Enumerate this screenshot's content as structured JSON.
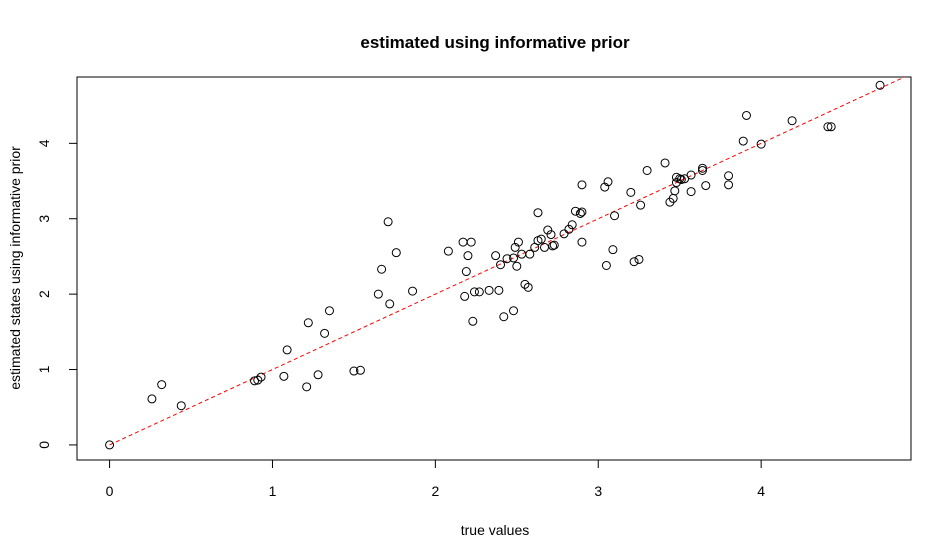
{
  "chart_data": {
    "type": "scatter",
    "title": "estimated using informative prior",
    "xlabel": "true values",
    "ylabel": "estimated states using informative prior",
    "xlim": [
      -0.2,
      4.92
    ],
    "ylim": [
      -0.2,
      4.88
    ],
    "xticks": [
      "0",
      "1",
      "2",
      "3",
      "4"
    ],
    "yticks": [
      "0",
      "1",
      "2",
      "3",
      "4"
    ],
    "grid": false,
    "reference_line": {
      "slope": 1,
      "intercept": 0,
      "color": "#ff0000",
      "style": "dashed"
    },
    "point_color": "#000000",
    "points": [
      [
        0.0,
        0.0
      ],
      [
        0.26,
        0.61
      ],
      [
        0.32,
        0.8
      ],
      [
        0.44,
        0.52
      ],
      [
        0.89,
        0.85
      ],
      [
        0.91,
        0.86
      ],
      [
        0.93,
        0.9
      ],
      [
        1.07,
        0.91
      ],
      [
        1.09,
        1.26
      ],
      [
        1.21,
        0.77
      ],
      [
        1.22,
        1.62
      ],
      [
        1.28,
        0.93
      ],
      [
        1.32,
        1.48
      ],
      [
        1.35,
        1.78
      ],
      [
        1.5,
        0.98
      ],
      [
        1.54,
        0.99
      ],
      [
        1.65,
        2.0
      ],
      [
        1.67,
        2.33
      ],
      [
        1.71,
        2.96
      ],
      [
        1.72,
        1.87
      ],
      [
        1.76,
        2.55
      ],
      [
        1.86,
        2.04
      ],
      [
        2.08,
        2.57
      ],
      [
        2.17,
        2.69
      ],
      [
        2.18,
        1.97
      ],
      [
        2.19,
        2.3
      ],
      [
        2.2,
        2.51
      ],
      [
        2.22,
        2.69
      ],
      [
        2.23,
        1.64
      ],
      [
        2.24,
        2.03
      ],
      [
        2.27,
        2.03
      ],
      [
        2.33,
        2.05
      ],
      [
        2.37,
        2.51
      ],
      [
        2.39,
        2.05
      ],
      [
        2.4,
        2.39
      ],
      [
        2.42,
        1.7
      ],
      [
        2.44,
        2.47
      ],
      [
        2.48,
        1.78
      ],
      [
        2.48,
        2.48
      ],
      [
        2.49,
        2.62
      ],
      [
        2.5,
        2.37
      ],
      [
        2.51,
        2.69
      ],
      [
        2.53,
        2.53
      ],
      [
        2.55,
        2.13
      ],
      [
        2.57,
        2.09
      ],
      [
        2.58,
        2.53
      ],
      [
        2.61,
        2.62
      ],
      [
        2.63,
        3.08
      ],
      [
        2.63,
        2.71
      ],
      [
        2.65,
        2.73
      ],
      [
        2.67,
        2.62
      ],
      [
        2.69,
        2.85
      ],
      [
        2.71,
        2.79
      ],
      [
        2.72,
        2.64
      ],
      [
        2.73,
        2.65
      ],
      [
        2.79,
        2.8
      ],
      [
        2.82,
        2.86
      ],
      [
        2.84,
        2.92
      ],
      [
        2.86,
        3.1
      ],
      [
        2.89,
        3.07
      ],
      [
        2.9,
        3.09
      ],
      [
        2.9,
        3.45
      ],
      [
        2.9,
        2.69
      ],
      [
        3.04,
        3.42
      ],
      [
        3.06,
        3.49
      ],
      [
        3.05,
        2.38
      ],
      [
        3.09,
        2.59
      ],
      [
        3.1,
        3.04
      ],
      [
        3.2,
        3.35
      ],
      [
        3.22,
        2.43
      ],
      [
        3.25,
        2.46
      ],
      [
        3.26,
        3.18
      ],
      [
        3.3,
        3.64
      ],
      [
        3.41,
        3.74
      ],
      [
        3.44,
        3.22
      ],
      [
        3.46,
        3.27
      ],
      [
        3.47,
        3.37
      ],
      [
        3.48,
        3.48
      ],
      [
        3.48,
        3.55
      ],
      [
        3.5,
        3.53
      ],
      [
        3.51,
        3.52
      ],
      [
        3.53,
        3.53
      ],
      [
        3.57,
        3.58
      ],
      [
        3.57,
        3.36
      ],
      [
        3.64,
        3.64
      ],
      [
        3.64,
        3.67
      ],
      [
        3.66,
        3.44
      ],
      [
        3.8,
        3.45
      ],
      [
        3.8,
        3.57
      ],
      [
        3.89,
        4.03
      ],
      [
        3.91,
        4.37
      ],
      [
        4.0,
        3.99
      ],
      [
        4.19,
        4.3
      ],
      [
        4.41,
        4.22
      ],
      [
        4.43,
        4.22
      ],
      [
        4.73,
        4.77
      ]
    ]
  }
}
